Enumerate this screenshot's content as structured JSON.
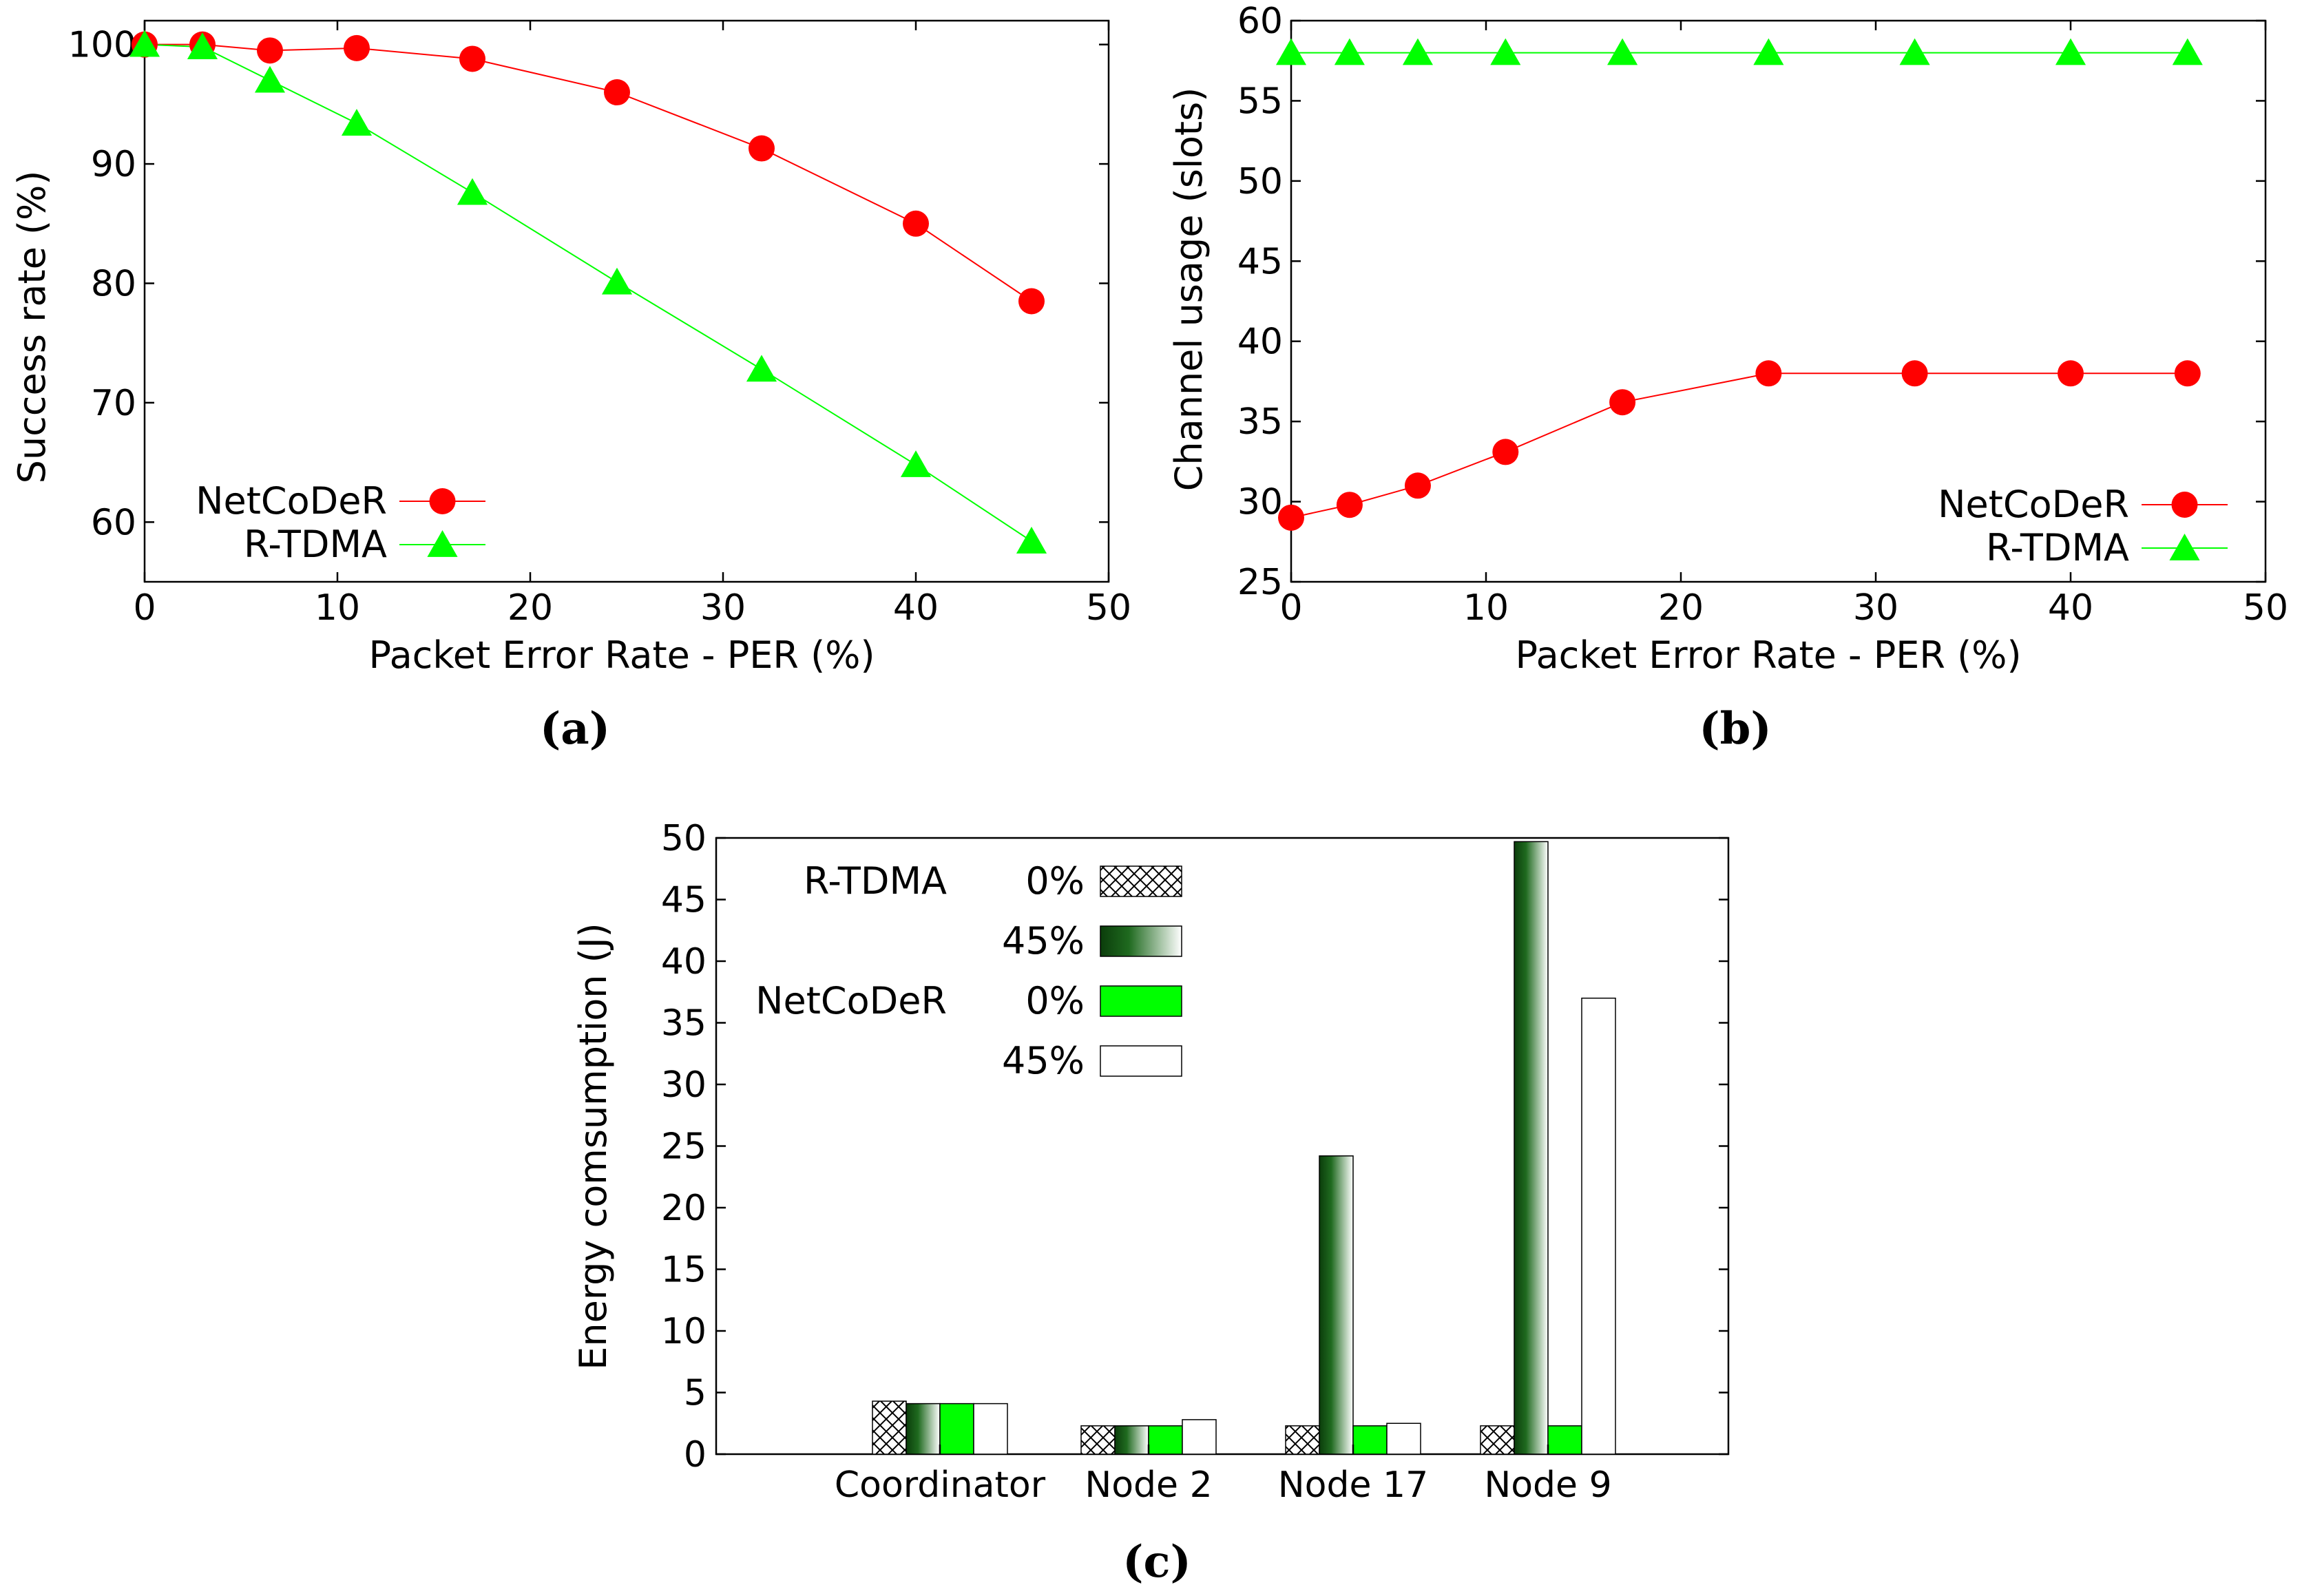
{
  "chart_data": [
    {
      "id": "a",
      "type": "line",
      "caption": "(a)",
      "xlabel": "Packet Error Rate - PER (%)",
      "ylabel": "Success rate (%)",
      "xlim": [
        0,
        50
      ],
      "ylim": [
        55,
        102
      ],
      "xticks": [
        0,
        10,
        20,
        30,
        40,
        50
      ],
      "yticks": [
        60,
        70,
        80,
        90,
        100
      ],
      "legend_position": "bottom-left",
      "series": [
        {
          "name": "NetCoDeR",
          "color": "#ff0000",
          "marker": "circle",
          "x": [
            0,
            3,
            6.5,
            11,
            17,
            24.5,
            32,
            40,
            46
          ],
          "y": [
            100,
            100,
            99.5,
            99.7,
            98.8,
            96,
            91.3,
            85,
            78.5
          ]
        },
        {
          "name": "R-TDMA",
          "color": "#00ff00",
          "marker": "triangle",
          "x": [
            0,
            3,
            6.5,
            11,
            17,
            24.5,
            32,
            40,
            46
          ],
          "y": [
            100,
            99.8,
            97,
            93.4,
            87.6,
            80.1,
            72.8,
            64.8,
            58.4
          ]
        }
      ]
    },
    {
      "id": "b",
      "type": "line",
      "caption": "(b)",
      "xlabel": "Packet Error Rate - PER (%)",
      "ylabel": "Channel usage (slots)",
      "xlim": [
        0,
        50
      ],
      "ylim": [
        25,
        60
      ],
      "xticks": [
        0,
        10,
        20,
        30,
        40,
        50
      ],
      "yticks": [
        25,
        30,
        35,
        40,
        45,
        50,
        55,
        60
      ],
      "legend_position": "bottom-right",
      "series": [
        {
          "name": "NetCoDeR",
          "color": "#ff0000",
          "marker": "circle",
          "x": [
            0,
            3,
            6.5,
            11,
            17,
            24.5,
            32,
            40,
            46
          ],
          "y": [
            29,
            29.8,
            31,
            33.1,
            36.2,
            38,
            38,
            38,
            38
          ]
        },
        {
          "name": "R-TDMA",
          "color": "#00ff00",
          "marker": "triangle",
          "x": [
            0,
            3,
            6.5,
            11,
            17,
            24.5,
            32,
            40,
            46
          ],
          "y": [
            58,
            58,
            58,
            58,
            58,
            58,
            58,
            58,
            58
          ]
        }
      ]
    },
    {
      "id": "c",
      "type": "bar",
      "caption": "(c)",
      "xlabel": "",
      "ylabel": "Energy comsumption (J)",
      "ylim": [
        0,
        50
      ],
      "yticks": [
        0,
        5,
        10,
        15,
        20,
        25,
        30,
        35,
        40,
        45,
        50
      ],
      "categories": [
        "Coordinator",
        "Node 2",
        "Node 17",
        "Node 9"
      ],
      "legend_position": "top-left",
      "legend_groups": [
        {
          "protocol": "R-TDMA",
          "entries": [
            "0%",
            "45%"
          ]
        },
        {
          "protocol": "NetCoDeR",
          "entries": [
            "0%",
            "45%"
          ]
        }
      ],
      "series": [
        {
          "name": "R-TDMA 0%",
          "fill": "crosshatch",
          "values": [
            4.3,
            2.3,
            2.3,
            2.3
          ]
        },
        {
          "name": "R-TDMA 45%",
          "fill": "dark-green-gradient",
          "values": [
            4.1,
            2.3,
            24.2,
            49.7
          ]
        },
        {
          "name": "NetCoDeR 0%",
          "fill": "#00ff00",
          "values": [
            4.1,
            2.3,
            2.3,
            2.3
          ]
        },
        {
          "name": "NetCoDeR 45%",
          "fill": "#ffffff",
          "values": [
            4.1,
            2.8,
            2.5,
            37
          ]
        }
      ]
    }
  ]
}
